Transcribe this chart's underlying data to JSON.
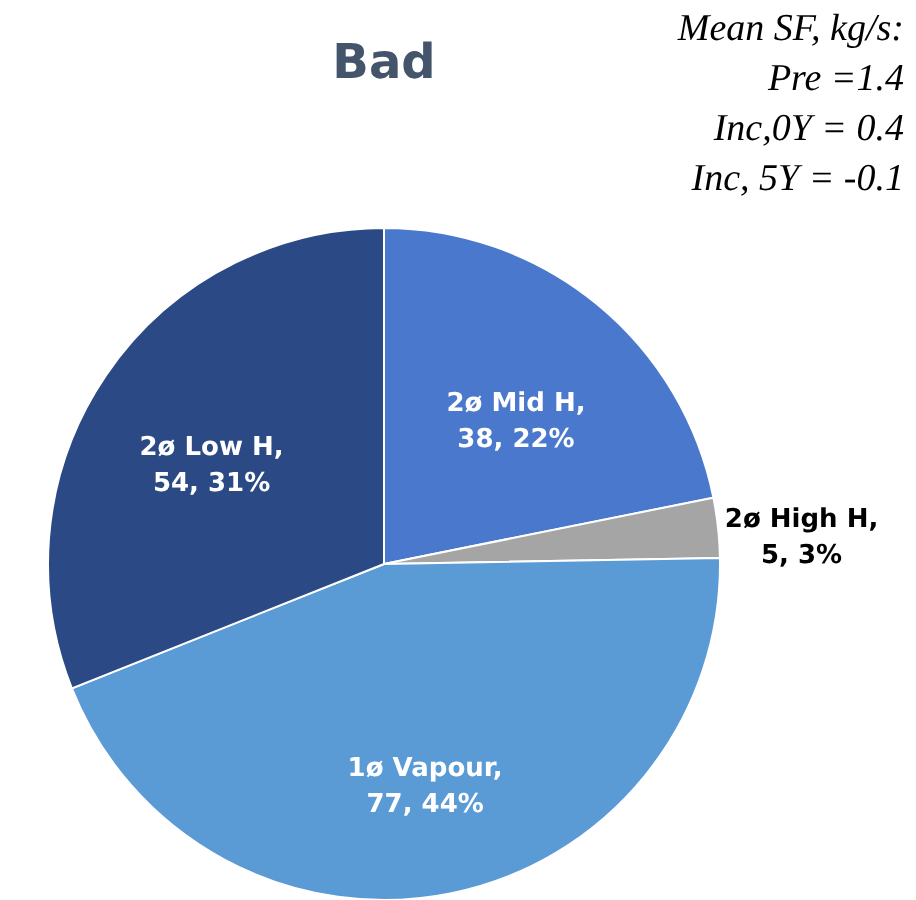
{
  "chart_data": {
    "type": "pie",
    "title": "Bad",
    "categories": [
      "2ø Mid H",
      "2ø High H",
      "1ø Vapour",
      "2ø Low H"
    ],
    "values": [
      38,
      5,
      77,
      54
    ],
    "colors": [
      "#4a78cc",
      "#a5a5a5",
      "#5b9bd5",
      "#2b4a85"
    ],
    "value_labels": [
      ", 38, 22%",
      ", 5, 3%",
      ", 77, 44%",
      ", 54, 31%"
    ],
    "annotations": [
      "Mean SF, kg/s:",
      "Pre =1.4",
      "Inc,0Y = 0.4",
      "Inc, 5Y = -0.1"
    ]
  }
}
